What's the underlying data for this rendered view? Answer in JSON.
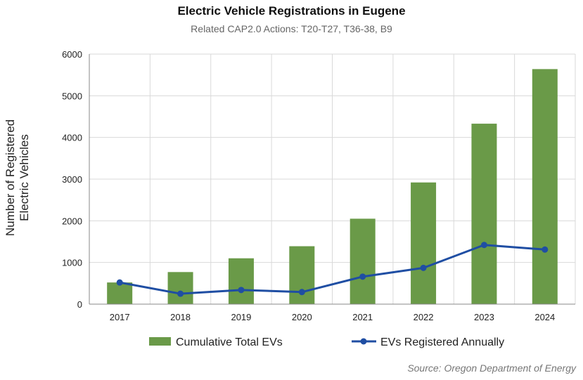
{
  "chart_data": {
    "type": "bar+line",
    "title": "Electric Vehicle Registrations in Eugene",
    "subtitle": "Related CAP2.0 Actions: T20-T27, T36-38, B9",
    "ylabel_line1": "Number of Registered",
    "ylabel_line2": "Electric Vehicles",
    "xlabel": "",
    "categories": [
      "2017",
      "2018",
      "2019",
      "2020",
      "2021",
      "2022",
      "2023",
      "2024"
    ],
    "ylim": [
      0,
      6000
    ],
    "yticks": [
      0,
      1000,
      2000,
      3000,
      4000,
      5000,
      6000
    ],
    "grid": true,
    "series": [
      {
        "name": "Cumulative Total EVs",
        "kind": "bar",
        "color": "#6a9a48",
        "values": [
          520,
          770,
          1100,
          1390,
          2050,
          2920,
          4330,
          5640
        ]
      },
      {
        "name": "EVs Registered Annually",
        "kind": "line",
        "color": "#1f4ea3",
        "values": [
          520,
          250,
          340,
          290,
          660,
          870,
          1420,
          1310
        ]
      }
    ],
    "legend_position": "bottom-center",
    "source": "Source: Oregon Department of Energy"
  }
}
